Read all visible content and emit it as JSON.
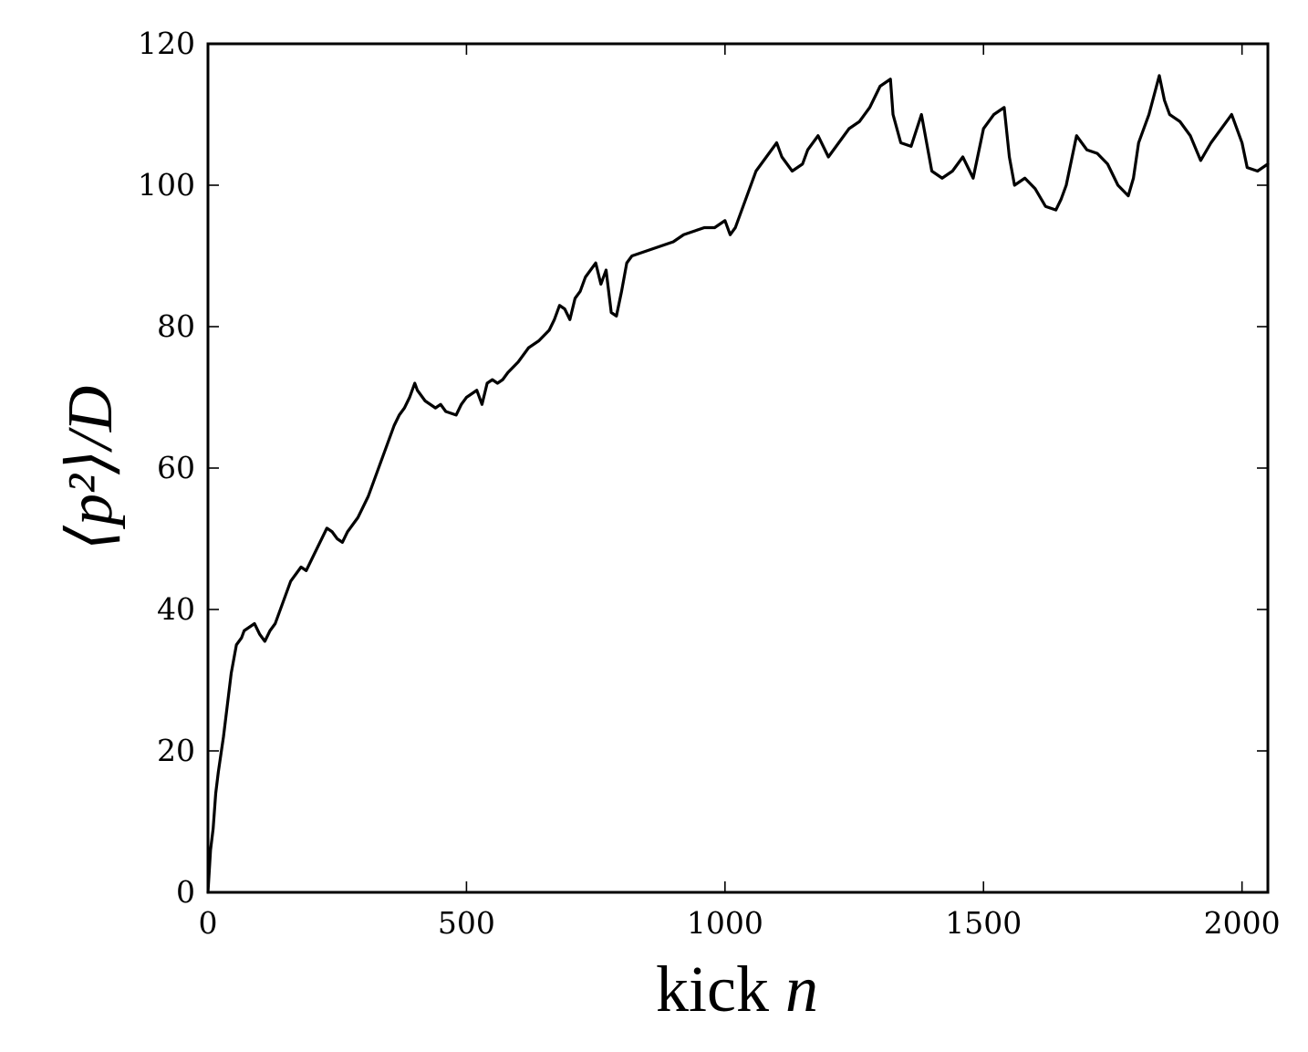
{
  "chart_data": {
    "type": "line",
    "title": "",
    "xlabel_text": "kick",
    "xlabel_var": "n",
    "ylabel": "⟨p²⟩/D",
    "xlim": [
      0,
      2050
    ],
    "ylim": [
      0,
      120
    ],
    "xticks": [
      0,
      500,
      1000,
      1500,
      2000
    ],
    "xtick_labels": [
      "0",
      "500",
      "1000",
      "1500",
      "2000"
    ],
    "yticks": [
      0,
      20,
      40,
      60,
      80,
      100,
      120
    ],
    "ytick_labels": [
      "0",
      "20",
      "40",
      "60",
      "80",
      "100",
      "120"
    ],
    "grid": false,
    "line_color": "#000000",
    "series": [
      {
        "x": [
          0,
          5,
          10,
          15,
          20,
          30,
          40,
          45,
          55,
          65,
          70,
          80,
          90,
          100,
          110,
          120,
          130,
          140,
          150,
          160,
          170,
          180,
          190,
          200,
          210,
          220,
          230,
          240,
          250,
          260,
          270,
          280,
          290,
          300,
          310,
          320,
          330,
          340,
          350,
          360,
          370,
          380,
          390,
          400,
          405,
          420,
          440,
          450,
          460,
          480,
          490,
          500,
          510,
          520,
          530,
          540,
          550,
          560,
          570,
          580,
          600,
          620,
          640,
          660,
          670,
          680,
          690,
          700,
          710,
          720,
          730,
          740,
          750,
          760,
          770,
          780,
          790,
          800,
          810,
          820,
          840,
          860,
          880,
          900,
          920,
          940,
          960,
          980,
          1000,
          1010,
          1020,
          1030,
          1040,
          1050,
          1060,
          1070,
          1080,
          1090,
          1100,
          1110,
          1130,
          1150,
          1160,
          1180,
          1200,
          1220,
          1230,
          1240,
          1260,
          1280,
          1300,
          1320,
          1325,
          1340,
          1360,
          1380,
          1400,
          1420,
          1440,
          1460,
          1480,
          1500,
          1520,
          1540,
          1550,
          1560,
          1580,
          1600,
          1620,
          1640,
          1650,
          1660,
          1680,
          1700,
          1720,
          1740,
          1760,
          1780,
          1790,
          1800,
          1820,
          1840,
          1850,
          1860,
          1880,
          1900,
          1920,
          1940,
          1960,
          1980,
          2000,
          2010,
          2030,
          2050
        ],
        "y": [
          0,
          6,
          9,
          14,
          17,
          22,
          28,
          31,
          35,
          36,
          37,
          37.5,
          38,
          36.5,
          35.5,
          37,
          38,
          40,
          42,
          44,
          45,
          46,
          45.5,
          47,
          48.5,
          50,
          51.5,
          51,
          50,
          49.5,
          51,
          52,
          53,
          54.5,
          56,
          58,
          60,
          62,
          64,
          66,
          67.5,
          68.5,
          70,
          72,
          71,
          69.5,
          68.5,
          69,
          68,
          67.5,
          69,
          70,
          70.5,
          71,
          69,
          72,
          72.5,
          72,
          72.5,
          73.5,
          75,
          77,
          78,
          79.5,
          81,
          83,
          82.5,
          81,
          84,
          85,
          87,
          88,
          89,
          86,
          88,
          82,
          81.5,
          85,
          89,
          90,
          90.5,
          91,
          91.5,
          92,
          93,
          93.5,
          94,
          94,
          95,
          93,
          94,
          96,
          98,
          100,
          102,
          103,
          104,
          105,
          106,
          104,
          102,
          103,
          105,
          107,
          104,
          106,
          107,
          108,
          109,
          111,
          114,
          115,
          110,
          106,
          105.5,
          110,
          102,
          101,
          102,
          104,
          101,
          108,
          110,
          111,
          104,
          100,
          101,
          99.5,
          97,
          96.5,
          98,
          100,
          107,
          105,
          104.5,
          103,
          100,
          98.5,
          101,
          106,
          110,
          115.5,
          112,
          110,
          109,
          107,
          103.5,
          106,
          108,
          110,
          106,
          102.5,
          102,
          103
        ]
      }
    ]
  }
}
